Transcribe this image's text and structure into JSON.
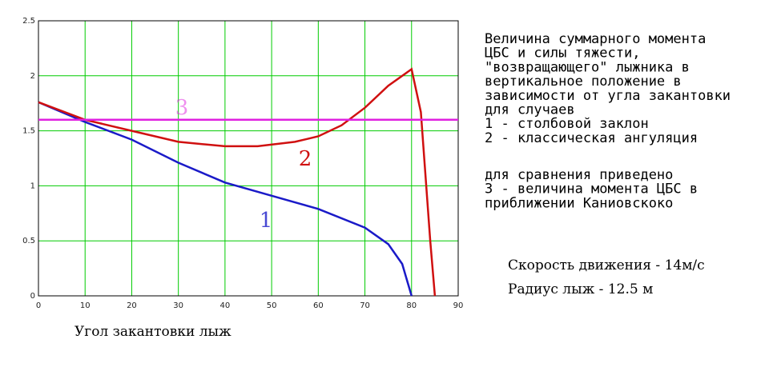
{
  "chart_data": {
    "type": "line",
    "x_label": "Угол закантовки лыж",
    "xlim": [
      0,
      90
    ],
    "ylim": [
      0,
      2.5
    ],
    "xticks": [
      0,
      10,
      20,
      30,
      40,
      50,
      60,
      70,
      80,
      90
    ],
    "yticks": [
      0,
      0.5,
      1,
      1.5,
      2,
      2.5
    ],
    "grid": true,
    "grid_color": "#00cc00",
    "series": [
      {
        "name": "1",
        "color": "#1a1ac8",
        "x": [
          0,
          10,
          20,
          30,
          40,
          50,
          60,
          70,
          75,
          78,
          80
        ],
        "values": [
          1.76,
          1.58,
          1.42,
          1.21,
          1.03,
          0.91,
          0.79,
          0.62,
          0.47,
          0.29,
          0
        ]
      },
      {
        "name": "2",
        "color": "#d01010",
        "x": [
          0,
          10,
          20,
          30,
          40,
          47,
          55,
          60,
          65,
          70,
          75,
          80,
          82,
          83,
          84,
          85
        ],
        "values": [
          1.76,
          1.6,
          1.5,
          1.4,
          1.36,
          1.36,
          1.4,
          1.45,
          1.55,
          1.71,
          1.91,
          2.06,
          1.67,
          1.09,
          0.5,
          0
        ]
      },
      {
        "name": "3",
        "color": "#e020e0",
        "x": [
          0,
          90
        ],
        "values": [
          1.6,
          1.6
        ]
      }
    ],
    "description": [
      "Величина суммарного момента",
      "ЦБС и силы тяжести,",
      "\"возвращающего\" лыжника в",
      "вертикальное положение в",
      "зависимости от угла закантовки",
      "для случаев",
      "1 - столбовой  заклон",
      "2 - классическая ангуляция"
    ],
    "comparison": [
      "для сравнения приведено",
      "3 - величина момента ЦБС в",
      "приближении Каниовскоко"
    ],
    "speed": "Скорость движения - 14м/с",
    "radius": "Радиус лыж - 12.5 м"
  }
}
